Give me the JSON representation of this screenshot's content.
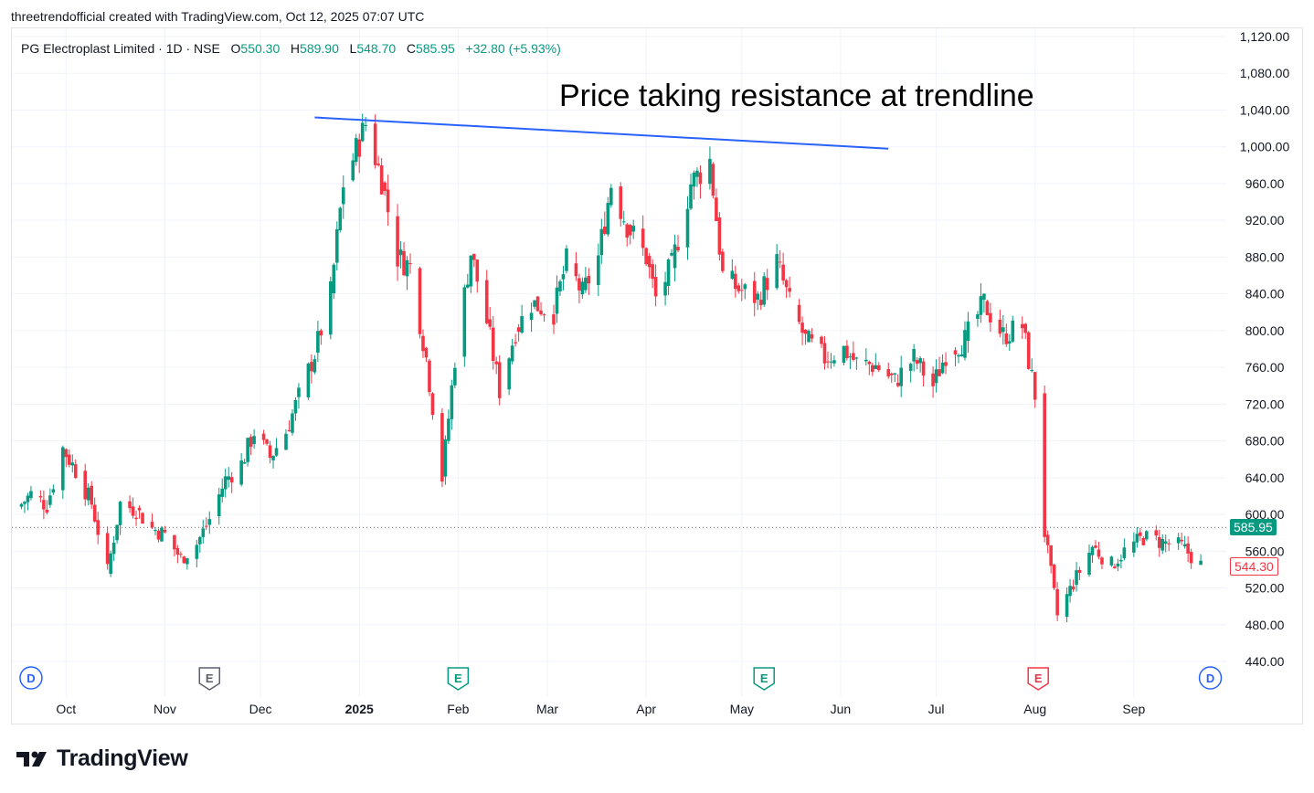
{
  "header": {
    "attribution": "threetrendofficial created with TradingView.com, Oct 12, 2025 07:07 UTC"
  },
  "legend": {
    "symbol": "PG Electroplast Limited · 1D · NSE",
    "o_label": "O",
    "o_value": "550.30",
    "h_label": "H",
    "h_value": "589.90",
    "l_label": "L",
    "l_value": "548.70",
    "c_label": "C",
    "c_value": "585.95",
    "change": "+32.80 (+5.93%)"
  },
  "annotation": "Price taking resistance at trendline",
  "price_tags": {
    "last": "585.95",
    "secondary": "544.30"
  },
  "brand": {
    "name": "TradingView"
  },
  "colors": {
    "up": "#089981",
    "down": "#f23645",
    "trendline": "#2962ff",
    "grid": "#f0f3fa",
    "axis_text": "#131722"
  },
  "chart_data": {
    "type": "candlestick",
    "title": "PG Electroplast Limited · 1D · NSE",
    "ylim": [
      420,
      1130
    ],
    "y_ticks": [
      "1,120.00",
      "1,080.00",
      "1,040.00",
      "1,000.00",
      "960.00",
      "920.00",
      "880.00",
      "840.00",
      "800.00",
      "760.00",
      "720.00",
      "680.00",
      "640.00",
      "600.00",
      "560.00",
      "520.00",
      "480.00",
      "440.00"
    ],
    "y_tick_values": [
      1120,
      1080,
      1040,
      1000,
      960,
      920,
      880,
      840,
      800,
      760,
      720,
      680,
      640,
      600,
      560,
      520,
      480,
      440
    ],
    "x_labels": [
      "Oct",
      "Nov",
      "Dec",
      "2025",
      "Feb",
      "Mar",
      "Apr",
      "May",
      "Jun",
      "Jul",
      "Aug",
      "Sep"
    ],
    "x_label_dates": [
      "2024-10-01",
      "2024-11-01",
      "2024-12-01",
      "2025-01-01",
      "2025-02-01",
      "2025-03-01",
      "2025-04-01",
      "2025-05-01",
      "2025-06-01",
      "2025-07-01",
      "2025-08-01",
      "2025-09-01"
    ],
    "closes": [
      {
        "date": "2024-09-16",
        "close": 608
      },
      {
        "date": "2024-09-20",
        "close": 622
      },
      {
        "date": "2024-09-25",
        "close": 610
      },
      {
        "date": "2024-09-30",
        "close": 672
      },
      {
        "date": "2024-10-04",
        "close": 648
      },
      {
        "date": "2024-10-09",
        "close": 612
      },
      {
        "date": "2024-10-14",
        "close": 538
      },
      {
        "date": "2024-10-18",
        "close": 612
      },
      {
        "date": "2024-10-23",
        "close": 605
      },
      {
        "date": "2024-10-28",
        "close": 585
      },
      {
        "date": "2024-11-01",
        "close": 578
      },
      {
        "date": "2024-11-06",
        "close": 552
      },
      {
        "date": "2024-11-11",
        "close": 568
      },
      {
        "date": "2024-11-15",
        "close": 595
      },
      {
        "date": "2024-11-20",
        "close": 638
      },
      {
        "date": "2024-11-25",
        "close": 655
      },
      {
        "date": "2024-11-29",
        "close": 690
      },
      {
        "date": "2024-12-04",
        "close": 662
      },
      {
        "date": "2024-12-09",
        "close": 690
      },
      {
        "date": "2024-12-13",
        "close": 728
      },
      {
        "date": "2024-12-18",
        "close": 775
      },
      {
        "date": "2024-12-23",
        "close": 840
      },
      {
        "date": "2024-12-27",
        "close": 960
      },
      {
        "date": "2025-01-01",
        "close": 1005
      },
      {
        "date": "2025-01-03",
        "close": 1025
      },
      {
        "date": "2025-01-08",
        "close": 965
      },
      {
        "date": "2025-01-13",
        "close": 880
      },
      {
        "date": "2025-01-17",
        "close": 870
      },
      {
        "date": "2025-01-22",
        "close": 770
      },
      {
        "date": "2025-01-27",
        "close": 640
      },
      {
        "date": "2025-01-31",
        "close": 770
      },
      {
        "date": "2025-02-05",
        "close": 885
      },
      {
        "date": "2025-02-10",
        "close": 810
      },
      {
        "date": "2025-02-14",
        "close": 735
      },
      {
        "date": "2025-02-19",
        "close": 800
      },
      {
        "date": "2025-02-24",
        "close": 830
      },
      {
        "date": "2025-03-03",
        "close": 820
      },
      {
        "date": "2025-03-07",
        "close": 875
      },
      {
        "date": "2025-03-12",
        "close": 840
      },
      {
        "date": "2025-03-17",
        "close": 880
      },
      {
        "date": "2025-03-21",
        "close": 960
      },
      {
        "date": "2025-03-26",
        "close": 915
      },
      {
        "date": "2025-04-01",
        "close": 880
      },
      {
        "date": "2025-04-04",
        "close": 835
      },
      {
        "date": "2025-04-09",
        "close": 870
      },
      {
        "date": "2025-04-15",
        "close": 960
      },
      {
        "date": "2025-04-21",
        "close": 985
      },
      {
        "date": "2025-04-25",
        "close": 860
      },
      {
        "date": "2025-04-30",
        "close": 845
      },
      {
        "date": "2025-05-06",
        "close": 835
      },
      {
        "date": "2025-05-12",
        "close": 875
      },
      {
        "date": "2025-05-16",
        "close": 830
      },
      {
        "date": "2025-05-21",
        "close": 790
      },
      {
        "date": "2025-05-27",
        "close": 770
      },
      {
        "date": "2025-06-02",
        "close": 780
      },
      {
        "date": "2025-06-06",
        "close": 765
      },
      {
        "date": "2025-06-12",
        "close": 762
      },
      {
        "date": "2025-06-18",
        "close": 745
      },
      {
        "date": "2025-06-24",
        "close": 770
      },
      {
        "date": "2025-06-30",
        "close": 740
      },
      {
        "date": "2025-07-04",
        "close": 775
      },
      {
        "date": "2025-07-10",
        "close": 790
      },
      {
        "date": "2025-07-16",
        "close": 830
      },
      {
        "date": "2025-07-22",
        "close": 795
      },
      {
        "date": "2025-07-28",
        "close": 805
      },
      {
        "date": "2025-08-01",
        "close": 730
      },
      {
        "date": "2025-08-04",
        "close": 580
      },
      {
        "date": "2025-08-08",
        "close": 490
      },
      {
        "date": "2025-08-13",
        "close": 525
      },
      {
        "date": "2025-08-19",
        "close": 565
      },
      {
        "date": "2025-08-25",
        "close": 545
      },
      {
        "date": "2025-08-29",
        "close": 560
      },
      {
        "date": "2025-09-04",
        "close": 575
      },
      {
        "date": "2025-09-10",
        "close": 570
      },
      {
        "date": "2025-09-16",
        "close": 565
      },
      {
        "date": "2025-09-22",
        "close": 545
      }
    ],
    "current_price": 585.95,
    "trendline": {
      "from": {
        "date": "2024-12-18",
        "price": 1032
      },
      "to": {
        "date": "2025-06-16",
        "price": 998
      }
    },
    "event_markers": [
      {
        "date": "2024-09-20",
        "label": "D",
        "kind": "dividend"
      },
      {
        "date": "2024-11-15",
        "label": "E",
        "kind": "earnings-gray"
      },
      {
        "date": "2025-02-01",
        "label": "E",
        "kind": "earnings-green"
      },
      {
        "date": "2025-05-08",
        "label": "E",
        "kind": "earnings-green"
      },
      {
        "date": "2025-08-02",
        "label": "E",
        "kind": "earnings-red"
      },
      {
        "date": "2025-09-25",
        "label": "D",
        "kind": "dividend"
      }
    ]
  }
}
